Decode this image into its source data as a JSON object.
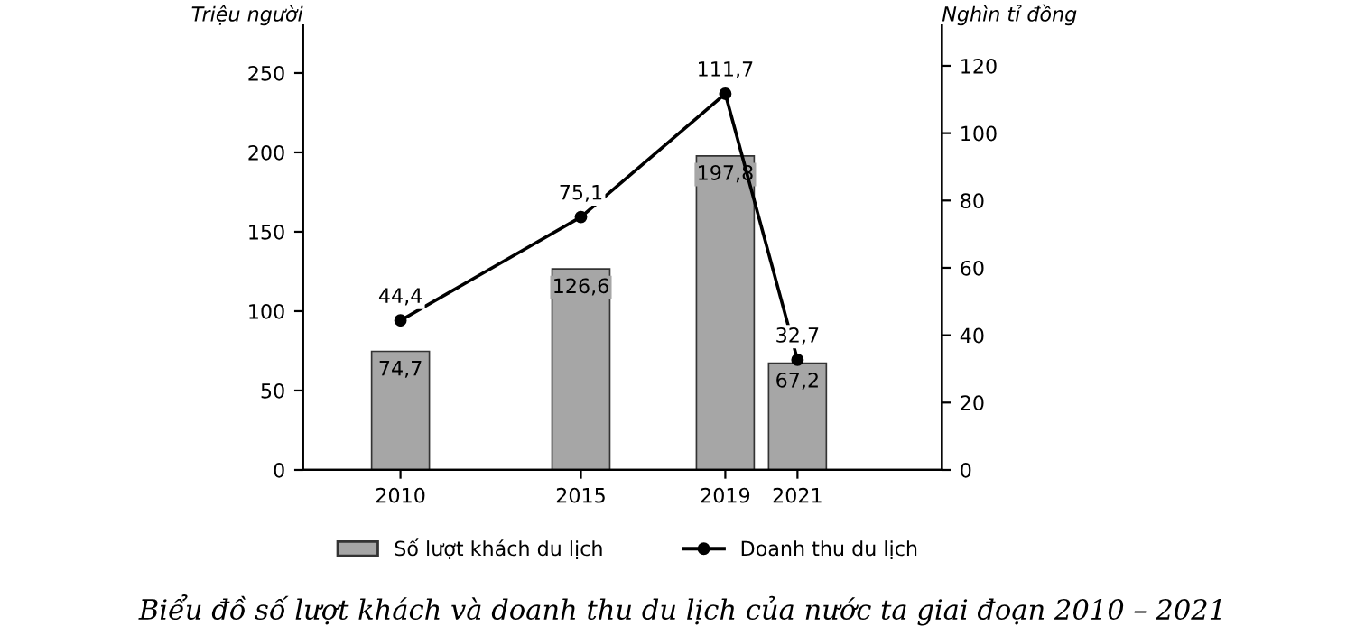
{
  "chart_data": {
    "type": "bar",
    "ylabel": "Triệu người",
    "y2label": "Nghìn tỉ đồng",
    "x": [
      2010,
      2015,
      2019,
      2021
    ],
    "xlim": [
      2007.3,
      2025
    ],
    "xticks": [
      2010,
      2015,
      2019,
      2021
    ],
    "ylim": [
      0,
      280
    ],
    "yticks": [
      0,
      50,
      100,
      150,
      200,
      250
    ],
    "y2lim": [
      0,
      132
    ],
    "y2ticks": [
      0,
      20,
      40,
      60,
      80,
      100,
      120
    ],
    "series": [
      {
        "name": "Số lượt khách du lịch",
        "color": "#a6a6a6",
        "values": [
          74.7,
          126.6,
          197.8,
          67.2
        ],
        "value_labels": [
          "74,7",
          "126,6",
          "197,8",
          "67,2"
        ]
      },
      {
        "name": "Doanh thu du lịch",
        "type": "line",
        "axis": "y2",
        "color": "#000000",
        "marker": "circle",
        "values": [
          44.4,
          75.1,
          111.7,
          32.7
        ],
        "value_labels": [
          "44,4",
          "75,1",
          "111,7",
          "32,7"
        ]
      }
    ],
    "legend": "bottom",
    "grid": false,
    "annotations": [
      "Biểu đồ số lượt khách và doanh thu du lịch của nước ta giai đoạn 2010 – 2021"
    ]
  }
}
